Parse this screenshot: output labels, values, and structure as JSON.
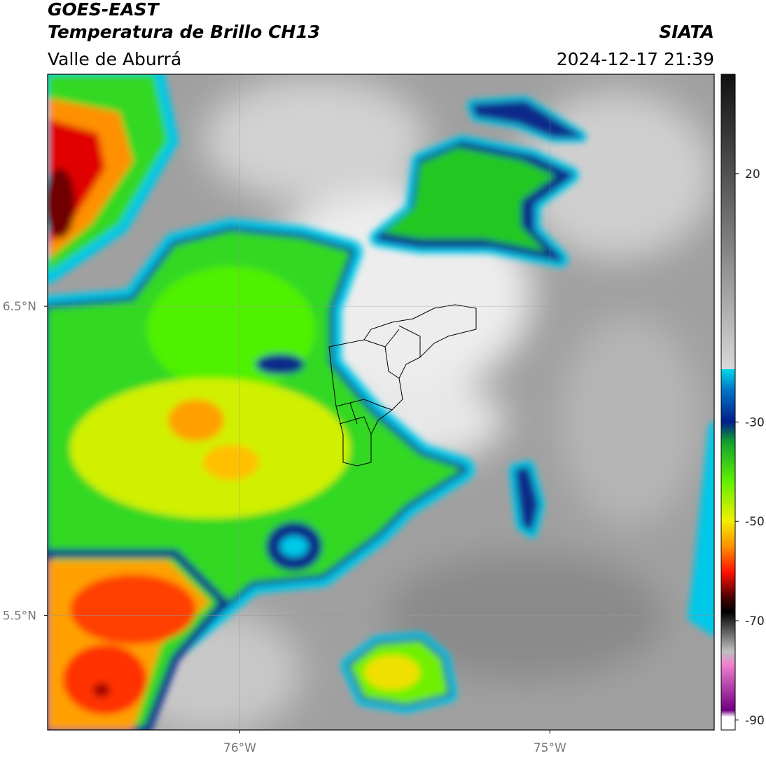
{
  "header": {
    "title": "GOES-EAST",
    "subtitle": "Temperatura de Brillo CH13",
    "region": "Valle de Aburrá",
    "source": "SIATA",
    "timestamp": "2024-12-17 21:39"
  },
  "map": {
    "xlim": [
      -76.62,
      -74.47
    ],
    "ylim": [
      5.13,
      7.25
    ],
    "xticks": [
      {
        "value": -76,
        "label": "76°W"
      },
      {
        "value": -75,
        "label": "75°W"
      }
    ],
    "yticks": [
      {
        "value": 6.5,
        "label": "6.5°N"
      },
      {
        "value": 5.5,
        "label": "5.5°N"
      }
    ]
  },
  "colorbar": {
    "lim": [
      -92,
      40
    ],
    "ticks": [
      20,
      -30,
      -50,
      -70,
      -90
    ]
  }
}
